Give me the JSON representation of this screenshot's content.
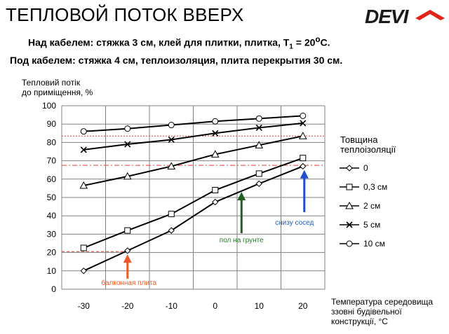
{
  "header": {
    "title": "ТЕПЛОВОЙ ПОТОК ВВЕРХ",
    "logo_text": "DEVI",
    "line1_pre": "Над кабелем: стяжка 3 см, клей для плитки, плитка, T",
    "line1_sub": "1",
    "line1_post": " =  20",
    "line1_sup": "о",
    "line1_end": "С.",
    "line2": "Под кабелем: стяжка 4 см, теплоизоляция, плита перекрытия 30 см."
  },
  "colors": {
    "line": "#000000",
    "grid": "#808080",
    "ref_red": "#e04030",
    "arrow_orange": "#f05a28",
    "arrow_green": "#1f5f1f",
    "arrow_blue": "#1f4fd0",
    "text_green": "#2a7a2a",
    "text_blue": "#2060c0"
  },
  "chart_data": {
    "type": "line",
    "x": [
      -30,
      -20,
      -10,
      0,
      10,
      20
    ],
    "xticks": [
      "-30",
      "-20",
      "-10",
      "0",
      "10",
      "20"
    ],
    "yticks": [
      "0",
      "10",
      "20",
      "30",
      "40",
      "50",
      "60",
      "70",
      "80",
      "90",
      "100"
    ],
    "xlim": [
      -35,
      25
    ],
    "ylim": [
      0,
      100
    ],
    "ylabel_lines": [
      "Тепловий потік",
      "до приміщення, %"
    ],
    "xlabel_lines": [
      "Температура середовища",
      "ззовні будівельної",
      "конструкції, °С"
    ],
    "legend_title_lines": [
      "Товщина",
      "теплоізоляції"
    ],
    "legend_position": "right",
    "grid": true,
    "series": [
      {
        "name": "0",
        "marker": "diamond",
        "values": [
          10,
          21,
          32,
          47.5,
          57.5,
          67
        ]
      },
      {
        "name": "0,3 см",
        "marker": "square",
        "values": [
          22.5,
          32,
          41,
          54,
          63,
          71.5
        ]
      },
      {
        "name": "2 см",
        "marker": "triangle",
        "values": [
          56.5,
          61.5,
          67,
          73.5,
          78.5,
          83.5
        ]
      },
      {
        "name": "5 см",
        "marker": "x",
        "values": [
          76,
          79,
          81.5,
          85,
          88,
          90.5
        ]
      },
      {
        "name": "10 см",
        "marker": "circle",
        "values": [
          86,
          87.5,
          89.5,
          91.5,
          93,
          94.5
        ]
      }
    ],
    "reference_lines": [
      {
        "y": 83.5,
        "style": "dotted"
      },
      {
        "y": 67.5,
        "style": "dash-dot"
      },
      {
        "y": 20.5,
        "x_to": -20,
        "style": "dashed"
      }
    ],
    "annotations": [
      {
        "text": "балконная плита",
        "x": -20,
        "color": "orange"
      },
      {
        "text": "пол на грунте",
        "x": 6,
        "color": "green"
      },
      {
        "text": "снизу сосед",
        "x": 20,
        "color": "blue"
      }
    ]
  }
}
